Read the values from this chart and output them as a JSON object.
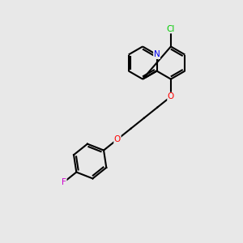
{
  "bg_color": "#e8e8e8",
  "bond_color": "#000000",
  "bond_width": 1.5,
  "atom_colors": {
    "N": "#0000ee",
    "O": "#ff0000",
    "Cl": "#00cc00",
    "F": "#cc00cc",
    "C": "#000000"
  },
  "figsize": [
    3.0,
    3.0
  ],
  "dpi": 100
}
